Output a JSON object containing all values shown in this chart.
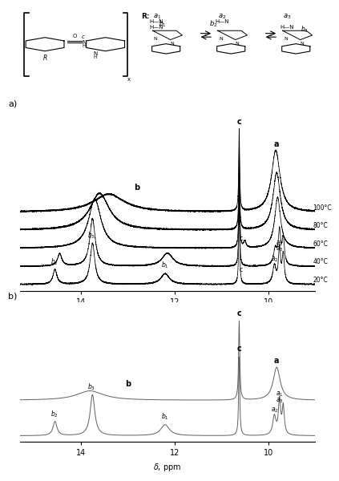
{
  "xmin": 9.0,
  "xmax": 15.5,
  "panel_a_temps": [
    "20°C",
    "40°C",
    "60°C",
    "80°C",
    "100°C"
  ],
  "bg_color": "#ffffff",
  "line_color_a": "#000000",
  "line_color_b": "#808080"
}
